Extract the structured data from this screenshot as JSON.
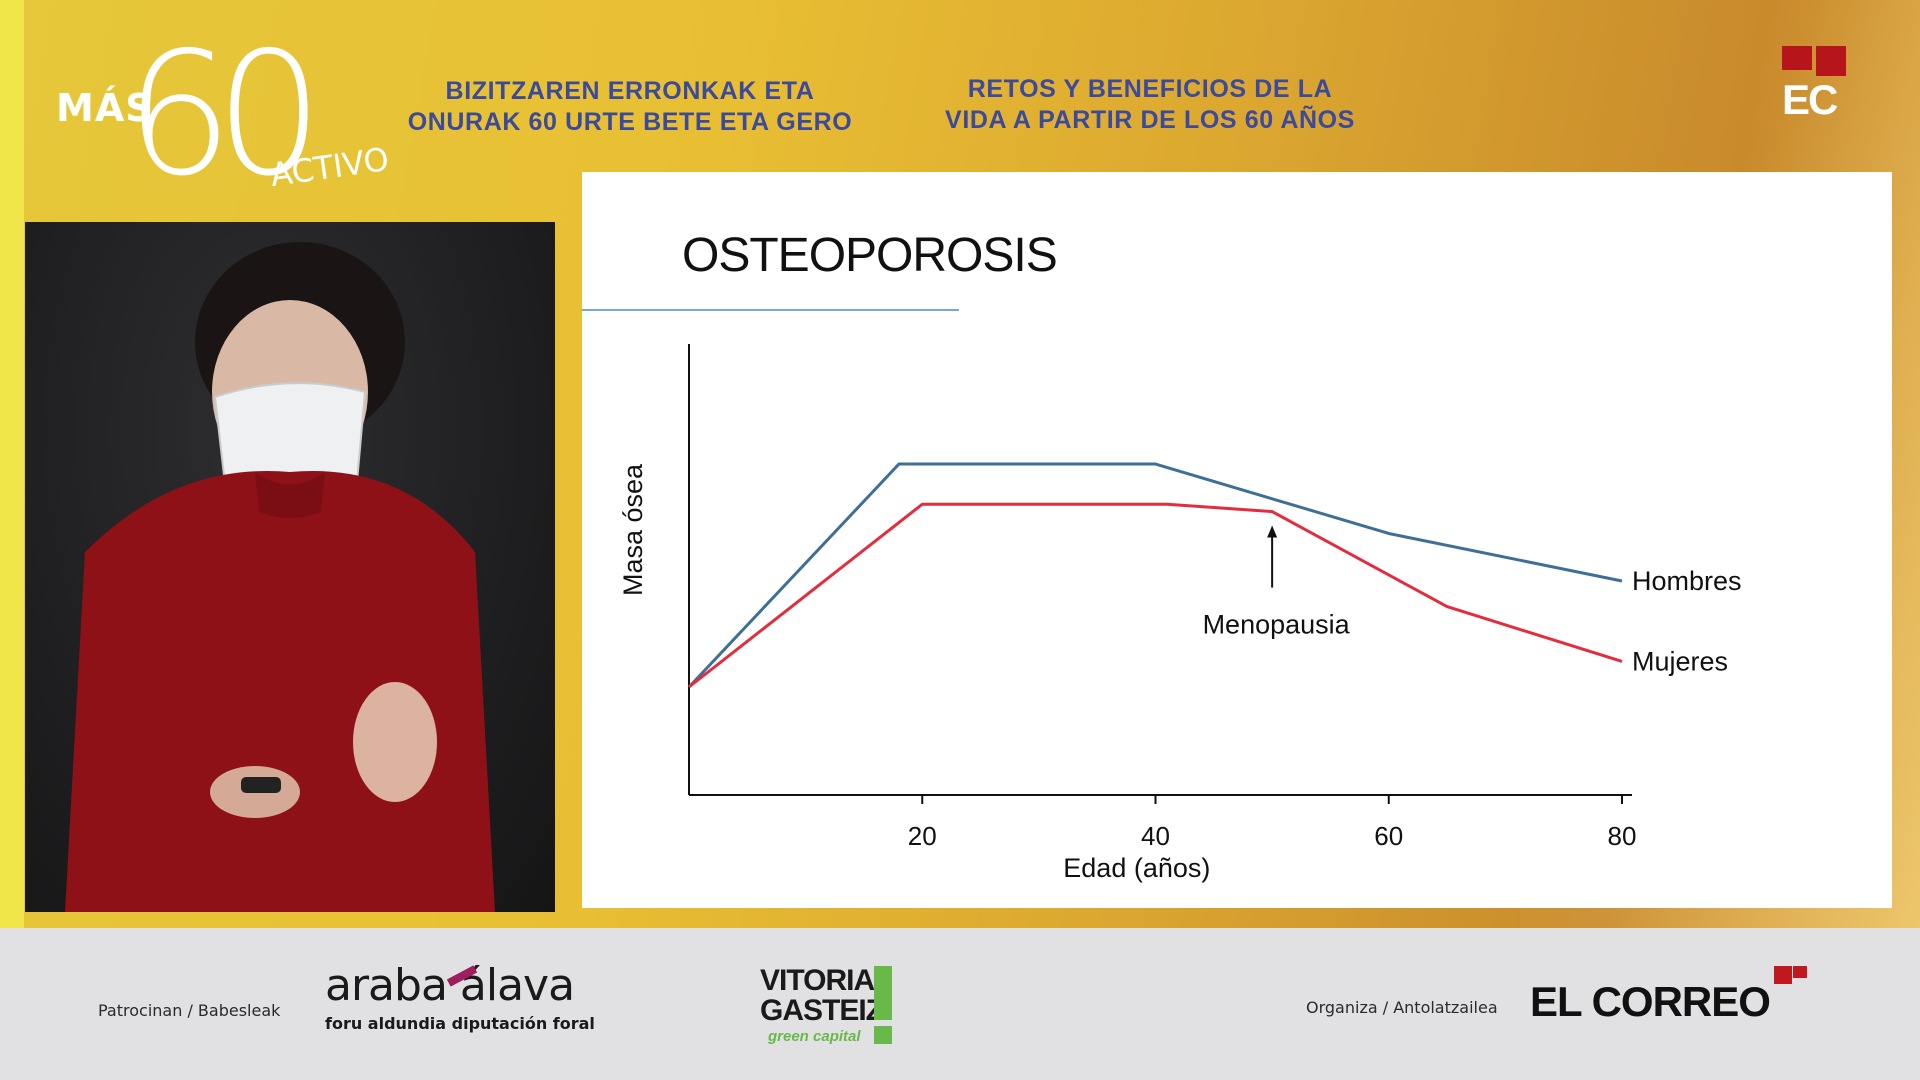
{
  "branding": {
    "show_mas": "MÁS",
    "show_number": "60",
    "show_activo": "ACTIVO",
    "headline_basque_line1": "BIZITZAREN ERRONKAK ETA",
    "headline_basque_line2": "ONURAK 60 URTE BETE ETA GERO",
    "headline_spanish_line1": "RETOS Y BENEFICIOS DE LA",
    "headline_spanish_line2": "VIDA A PARTIR DE LOS 60 AÑOS",
    "channel_logo": "EC"
  },
  "slide": {
    "title": "OSTEOPOROSIS"
  },
  "chart_data": {
    "type": "line",
    "title": "OSTEOPOROSIS",
    "xlabel": "Edad (años)",
    "ylabel": "Masa ósea",
    "x_ticks": [
      20,
      40,
      60,
      80
    ],
    "xlim": [
      0,
      80
    ],
    "y_axis_values_shown": false,
    "grid": false,
    "series": [
      {
        "name": "Hombres",
        "color": "#3f6e96",
        "points": [
          [
            0,
            0.0
          ],
          [
            18,
            0.61
          ],
          [
            40,
            0.61
          ],
          [
            60,
            0.42
          ],
          [
            80,
            0.29
          ]
        ]
      },
      {
        "name": "Mujeres",
        "color": "#e32d3c",
        "points": [
          [
            0,
            0.0
          ],
          [
            20,
            0.5
          ],
          [
            41,
            0.5
          ],
          [
            50,
            0.48
          ],
          [
            65,
            0.22
          ],
          [
            80,
            0.07
          ]
        ]
      }
    ],
    "annotations": [
      {
        "text": "Menopausia",
        "x": 50,
        "arrow_to_series": "Mujeres"
      }
    ]
  },
  "sponsors": {
    "patrocinan_label": "Patrocinan / Babesleak",
    "araba_top": "araba álava",
    "araba_bottom": "foru aldundia  diputación foral",
    "vitoria_line1": "VITORIA",
    "vitoria_line2": "GASTEIZ",
    "vitoria_tagline": "green capital",
    "organiza_label": "Organiza / Antolatzailea",
    "organizer": "EL CORREO"
  },
  "colors": {
    "accent_blue_text": "#3b4a9c",
    "brand_red": "#b5151b",
    "slide_rule": "#7aa6d8"
  },
  "video": {
    "content": "presenter-video-feed"
  }
}
